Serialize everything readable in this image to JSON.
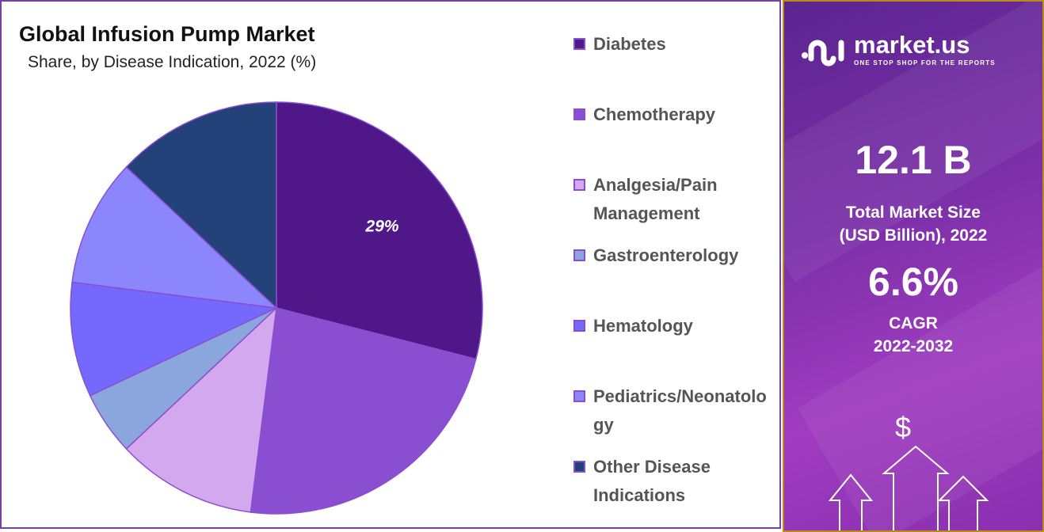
{
  "chart_data": {
    "type": "pie",
    "title": "Global Infusion Pump Market",
    "subtitle": "Share, by Disease Indication, 2022 (%)",
    "categories": [
      "Diabetes",
      "Chemotherapy",
      "Analgesia/Pain Management",
      "Gastroenterology",
      "Hematology",
      "Pediatrics/Neonatology",
      "Other Disease Indications"
    ],
    "values": [
      29,
      23,
      11,
      5,
      9,
      10,
      13
    ],
    "colors": [
      "#4f1787",
      "#8a4fd0",
      "#d4a8ee",
      "#8aa6dc",
      "#7469fc",
      "#8c86fc",
      "#24427a"
    ],
    "data_labels": [
      "29%",
      "",
      "",
      "",
      "",
      "",
      ""
    ],
    "legend_position": "right"
  },
  "sidebar": {
    "brand": "market.us",
    "tagline": "ONE STOP SHOP FOR THE REPORTS",
    "market_size": "12.1 B",
    "market_size_label_1": "Total Market Size",
    "market_size_label_2": "(USD Billion), 2022",
    "cagr": "6.6%",
    "cagr_label_1": "CAGR",
    "cagr_label_2": "2022-2032",
    "currency_symbol": "$"
  }
}
